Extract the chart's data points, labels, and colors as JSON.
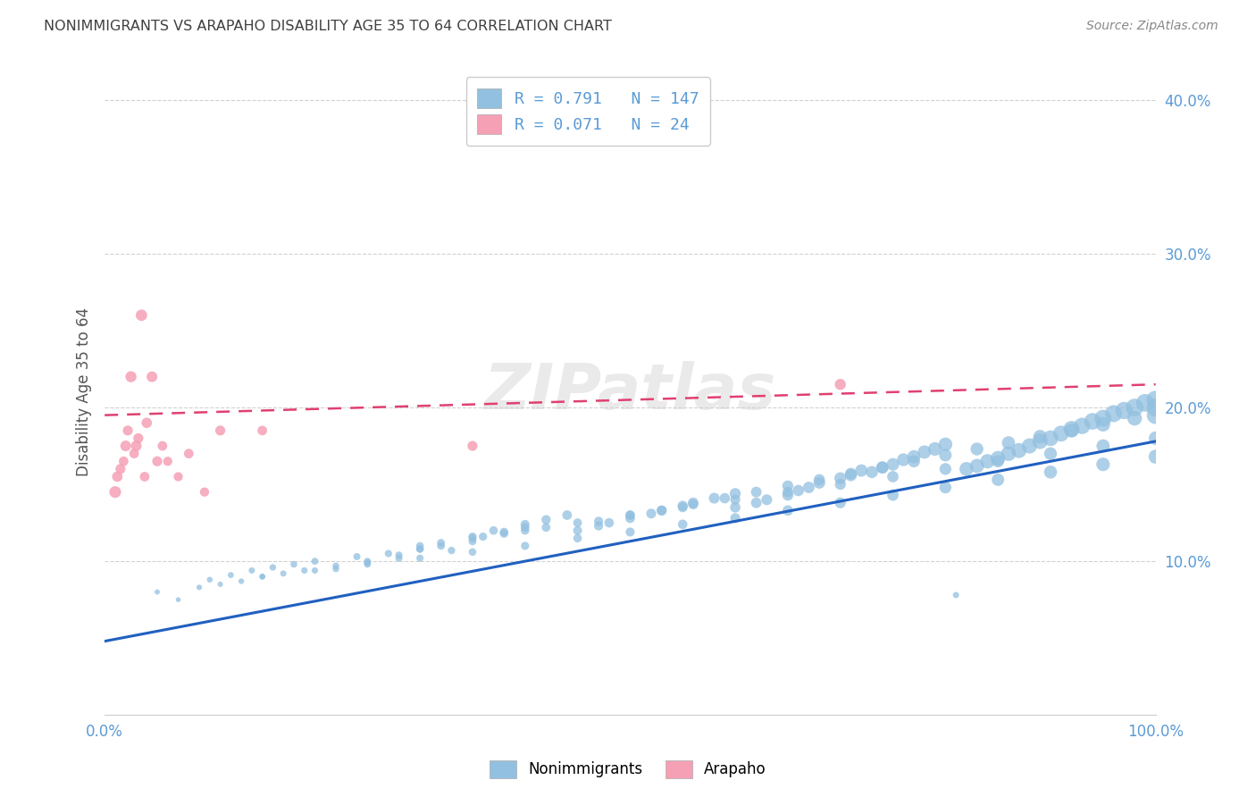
{
  "title": "NONIMMIGRANTS VS ARAPAHO DISABILITY AGE 35 TO 64 CORRELATION CHART",
  "source": "Source: ZipAtlas.com",
  "ylabel": "Disability Age 35 to 64",
  "legend_label1": "Nonimmigrants",
  "legend_label2": "Arapaho",
  "legend_R1": "0.791",
  "legend_N1": "147",
  "legend_R2": "0.071",
  "legend_N2": "24",
  "watermark": "ZIPatlas",
  "blue_color": "#92C0E0",
  "pink_color": "#F5A0B5",
  "blue_line_color": "#2060C0",
  "pink_line_color": "#E04070",
  "title_color": "#404040",
  "axis_label_color": "#5B9BD5",
  "xmin": 0.0,
  "xmax": 1.0,
  "ymin": 0.0,
  "ymax": 0.42,
  "yticks": [
    0.1,
    0.2,
    0.3,
    0.4
  ],
  "ytick_labels": [
    "10.0%",
    "20.0%",
    "30.0%",
    "40.0%"
  ],
  "blue_trend_x0": 0.0,
  "blue_trend_y0": 0.048,
  "blue_trend_x1": 1.0,
  "blue_trend_y1": 0.178,
  "pink_trend_x0": 0.0,
  "pink_trend_y0": 0.195,
  "pink_trend_x1": 1.0,
  "pink_trend_y1": 0.215,
  "blue_x": [
    0.05,
    0.07,
    0.09,
    0.1,
    0.11,
    0.12,
    0.13,
    0.14,
    0.15,
    0.16,
    0.17,
    0.18,
    0.19,
    0.2,
    0.22,
    0.24,
    0.25,
    0.27,
    0.28,
    0.3,
    0.32,
    0.33,
    0.35,
    0.36,
    0.38,
    0.4,
    0.22,
    0.25,
    0.28,
    0.3,
    0.32,
    0.35,
    0.37,
    0.4,
    0.42,
    0.44,
    0.45,
    0.47,
    0.48,
    0.5,
    0.52,
    0.53,
    0.55,
    0.56,
    0.58,
    0.6,
    0.6,
    0.62,
    0.63,
    0.65,
    0.66,
    0.67,
    0.68,
    0.7,
    0.71,
    0.72,
    0.73,
    0.74,
    0.75,
    0.76,
    0.77,
    0.78,
    0.79,
    0.8,
    0.81,
    0.82,
    0.83,
    0.84,
    0.85,
    0.86,
    0.87,
    0.88,
    0.89,
    0.9,
    0.91,
    0.92,
    0.93,
    0.94,
    0.95,
    0.96,
    0.97,
    0.98,
    0.99,
    1.0,
    1.0,
    1.0,
    0.3,
    0.35,
    0.4,
    0.45,
    0.5,
    0.55,
    0.6,
    0.65,
    0.7,
    0.75,
    0.8,
    0.85,
    0.9,
    0.95,
    1.0,
    0.15,
    0.2,
    0.25,
    0.3,
    0.35,
    0.4,
    0.45,
    0.5,
    0.55,
    0.6,
    0.65,
    0.7,
    0.75,
    0.8,
    0.85,
    0.9,
    0.95,
    1.0,
    0.38,
    0.42,
    0.47,
    0.5,
    0.53,
    0.56,
    0.59,
    0.62,
    0.65,
    0.68,
    0.71,
    0.74,
    0.77,
    0.8,
    0.83,
    0.86,
    0.89,
    0.92,
    0.95,
    0.98
  ],
  "blue_y": [
    0.08,
    0.075,
    0.083,
    0.088,
    0.085,
    0.091,
    0.087,
    0.094,
    0.09,
    0.096,
    0.092,
    0.098,
    0.094,
    0.1,
    0.097,
    0.103,
    0.099,
    0.105,
    0.102,
    0.108,
    0.11,
    0.107,
    0.113,
    0.116,
    0.119,
    0.122,
    0.095,
    0.1,
    0.104,
    0.108,
    0.112,
    0.116,
    0.12,
    0.124,
    0.127,
    0.13,
    0.12,
    0.123,
    0.125,
    0.128,
    0.131,
    0.133,
    0.136,
    0.138,
    0.141,
    0.144,
    0.135,
    0.138,
    0.14,
    0.143,
    0.146,
    0.148,
    0.151,
    0.154,
    0.156,
    0.159,
    0.158,
    0.161,
    0.163,
    0.166,
    0.168,
    0.171,
    0.173,
    0.176,
    0.078,
    0.16,
    0.162,
    0.165,
    0.167,
    0.17,
    0.172,
    0.175,
    0.178,
    0.18,
    0.183,
    0.186,
    0.188,
    0.191,
    0.193,
    0.196,
    0.198,
    0.2,
    0.203,
    0.205,
    0.2,
    0.195,
    0.11,
    0.115,
    0.12,
    0.125,
    0.13,
    0.135,
    0.14,
    0.145,
    0.15,
    0.155,
    0.16,
    0.165,
    0.17,
    0.175,
    0.18,
    0.09,
    0.094,
    0.098,
    0.102,
    0.106,
    0.11,
    0.115,
    0.119,
    0.124,
    0.128,
    0.133,
    0.138,
    0.143,
    0.148,
    0.153,
    0.158,
    0.163,
    0.168,
    0.118,
    0.122,
    0.126,
    0.13,
    0.133,
    0.137,
    0.141,
    0.145,
    0.149,
    0.153,
    0.157,
    0.161,
    0.165,
    0.169,
    0.173,
    0.177,
    0.181,
    0.185,
    0.189,
    0.193
  ],
  "blue_s": [
    18,
    16,
    20,
    22,
    19,
    24,
    21,
    26,
    23,
    28,
    25,
    30,
    27,
    32,
    29,
    33,
    31,
    35,
    33,
    38,
    40,
    36,
    42,
    44,
    47,
    50,
    28,
    31,
    34,
    37,
    40,
    44,
    48,
    52,
    56,
    60,
    52,
    55,
    58,
    61,
    64,
    67,
    70,
    73,
    76,
    80,
    70,
    73,
    76,
    80,
    83,
    86,
    90,
    93,
    96,
    100,
    95,
    99,
    103,
    107,
    111,
    115,
    119,
    123,
    25,
    127,
    131,
    135,
    139,
    143,
    147,
    151,
    155,
    160,
    165,
    170,
    175,
    180,
    185,
    190,
    195,
    200,
    205,
    215,
    210,
    205,
    38,
    42,
    46,
    50,
    55,
    60,
    66,
    72,
    78,
    84,
    91,
    98,
    106,
    114,
    122,
    22,
    26,
    30,
    34,
    38,
    43,
    48,
    53,
    59,
    65,
    71,
    78,
    85,
    93,
    101,
    110,
    119,
    128,
    46,
    50,
    54,
    58,
    62,
    66,
    70,
    74,
    78,
    82,
    87,
    92,
    97,
    102,
    108,
    114,
    120,
    126,
    133,
    140
  ],
  "pink_x": [
    0.01,
    0.012,
    0.015,
    0.018,
    0.02,
    0.022,
    0.025,
    0.028,
    0.03,
    0.032,
    0.035,
    0.038,
    0.04,
    0.045,
    0.05,
    0.055,
    0.06,
    0.07,
    0.08,
    0.095,
    0.11,
    0.15,
    0.35,
    0.7
  ],
  "pink_y": [
    0.145,
    0.155,
    0.16,
    0.165,
    0.175,
    0.185,
    0.22,
    0.17,
    0.175,
    0.18,
    0.26,
    0.155,
    0.19,
    0.22,
    0.165,
    0.175,
    0.165,
    0.155,
    0.17,
    0.145,
    0.185,
    0.185,
    0.175,
    0.215
  ],
  "pink_s": [
    90,
    70,
    65,
    60,
    75,
    65,
    80,
    60,
    75,
    65,
    85,
    60,
    70,
    75,
    65,
    60,
    55,
    55,
    60,
    55,
    65,
    60,
    65,
    80
  ]
}
